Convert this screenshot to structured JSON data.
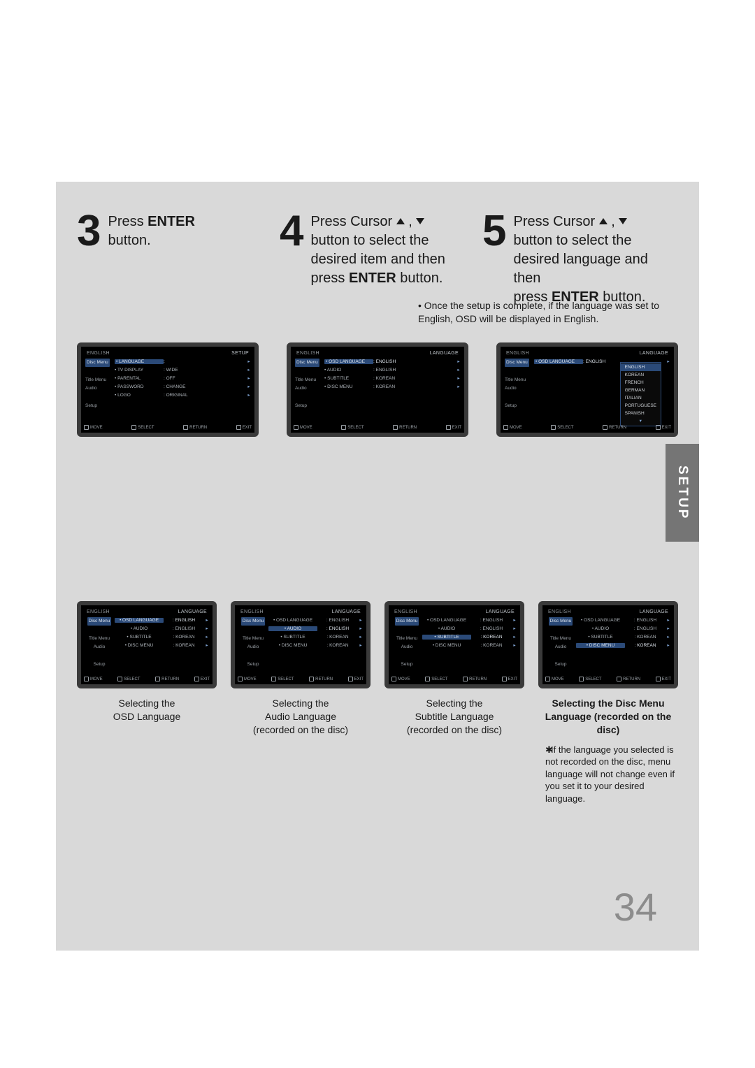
{
  "page": {
    "number": "34",
    "section_tab": "SETUP"
  },
  "steps": {
    "s3": {
      "num": "3",
      "text_pre": "Press ",
      "enter": "ENTER",
      "text_post": "\nbutton."
    },
    "s4": {
      "num": "4",
      "l1_pre": "Press Cursor ",
      "l2": "button to select the",
      "l3": "desired item and then",
      "l4_pre": "press ",
      "l4_b": "ENTER",
      "l4_post": " button."
    },
    "s5": {
      "num": "5",
      "l1_pre": "Press Cursor ",
      "l2": "button to select the",
      "l3": "desired language and then",
      "l4_pre": "press ",
      "l4_b": "ENTER",
      "l4_post": " button."
    }
  },
  "note": "Once the setup is complete, if the language was set to English, OSD will be displayed in English.",
  "top_screens": {
    "s3": {
      "head_l": "ENGLISH",
      "head_r": "SETUP",
      "side": [
        "Disc Menu",
        "",
        "Title Menu",
        "Audio",
        "",
        "Setup"
      ],
      "rows": [
        {
          "lbl": "LANGUAGE",
          "val": "",
          "sel": true
        },
        {
          "lbl": "TV DISPLAY",
          "val": "WIDE"
        },
        {
          "lbl": "PARENTAL",
          "val": "OFF"
        },
        {
          "lbl": "PASSWORD",
          "val": "CHANGE"
        },
        {
          "lbl": "LOGO",
          "val": "ORIGINAL"
        }
      ],
      "foot": [
        "MOVE",
        "SELECT",
        "RETURN",
        "EXIT"
      ]
    },
    "s4": {
      "head_l": "ENGLISH",
      "head_r": "LANGUAGE",
      "side": [
        "Disc Menu",
        "",
        "Title Menu",
        "Audio",
        "",
        "Setup"
      ],
      "rows": [
        {
          "lbl": "OSD LANGUAGE",
          "val": "ENGLISH",
          "sel": true
        },
        {
          "lbl": "AUDIO",
          "val": "ENGLISH"
        },
        {
          "lbl": "SUBTITLE",
          "val": "KOREAN"
        },
        {
          "lbl": "DISC MENU",
          "val": "KOREAN"
        }
      ],
      "foot": [
        "MOVE",
        "SELECT",
        "RETURN",
        "EXIT"
      ]
    },
    "s5": {
      "head_l": "ENGLISH",
      "head_r": "LANGUAGE",
      "side": [
        "Disc Menu",
        "",
        "Title Menu",
        "Audio",
        "",
        "Setup"
      ],
      "rows": [
        {
          "lbl": "OSD LANGUAGE",
          "val": "ENGLISH",
          "sel": true
        }
      ],
      "lang_list": [
        "ENGLISH",
        "KOREAN",
        "FRENCH",
        "GERMAN",
        "ITALIAN",
        "PORTUGUESE",
        "SPANISH"
      ],
      "lang_sel": 0,
      "foot": [
        "MOVE",
        "SELECT",
        "RETURN",
        "EXIT"
      ]
    }
  },
  "bottom": [
    {
      "caption": "Selecting the\nOSD Language",
      "screen": {
        "head_l": "ENGLISH",
        "head_r": "LANGUAGE",
        "side": [
          "Disc Menu",
          "",
          "Title Menu",
          "Audio",
          "",
          "Setup"
        ],
        "rows": [
          {
            "lbl": "OSD LANGUAGE",
            "val": "ENGLISH",
            "sel": true
          },
          {
            "lbl": "AUDIO",
            "val": "ENGLISH"
          },
          {
            "lbl": "SUBTITLE",
            "val": "KOREAN"
          },
          {
            "lbl": "DISC MENU",
            "val": "KOREAN"
          }
        ],
        "foot": [
          "MOVE",
          "SELECT",
          "RETURN",
          "EXIT"
        ]
      }
    },
    {
      "caption": "Selecting the\nAudio Language\n(recorded on the disc)",
      "screen": {
        "head_l": "ENGLISH",
        "head_r": "LANGUAGE",
        "side": [
          "Disc Menu",
          "",
          "Title Menu",
          "Audio",
          "",
          "Setup"
        ],
        "rows": [
          {
            "lbl": "OSD LANGUAGE",
            "val": "ENGLISH"
          },
          {
            "lbl": "AUDIO",
            "val": "ENGLISH",
            "sel": true
          },
          {
            "lbl": "SUBTITLE",
            "val": "KOREAN"
          },
          {
            "lbl": "DISC MENU",
            "val": "KOREAN"
          }
        ],
        "foot": [
          "MOVE",
          "SELECT",
          "RETURN",
          "EXIT"
        ]
      }
    },
    {
      "caption": "Selecting the\nSubtitle Language\n(recorded on the disc)",
      "screen": {
        "head_l": "ENGLISH",
        "head_r": "LANGUAGE",
        "side": [
          "Disc Menu",
          "",
          "Title Menu",
          "Audio",
          "",
          "Setup"
        ],
        "rows": [
          {
            "lbl": "OSD LANGUAGE",
            "val": "ENGLISH"
          },
          {
            "lbl": "AUDIO",
            "val": "ENGLISH"
          },
          {
            "lbl": "SUBTITLE",
            "val": "KOREAN",
            "sel": true
          },
          {
            "lbl": "DISC MENU",
            "val": "KOREAN"
          }
        ],
        "foot": [
          "MOVE",
          "SELECT",
          "RETURN",
          "EXIT"
        ]
      }
    },
    {
      "caption": "Selecting the Disc Menu\nLanguage (recorded on the disc)",
      "bold": true,
      "screen": {
        "head_l": "ENGLISH",
        "head_r": "LANGUAGE",
        "side": [
          "Disc Menu",
          "",
          "Title Menu",
          "Audio",
          "",
          "Setup"
        ],
        "rows": [
          {
            "lbl": "OSD LANGUAGE",
            "val": "ENGLISH"
          },
          {
            "lbl": "AUDIO",
            "val": "ENGLISH"
          },
          {
            "lbl": "SUBTITLE",
            "val": "KOREAN"
          },
          {
            "lbl": "DISC MENU",
            "val": "KOREAN",
            "sel": true
          }
        ],
        "foot": [
          "MOVE",
          "SELECT",
          "RETURN",
          "EXIT"
        ]
      },
      "footnote": "If the language you selected is not recorded on the disc, menu language will not change even if you set it to your desired language."
    }
  ],
  "colors": {
    "page_bg": "#d9d9d9",
    "tab_bg": "#757575"
  }
}
